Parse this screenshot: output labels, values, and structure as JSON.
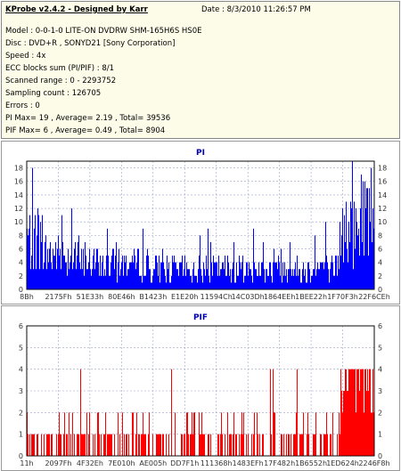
{
  "header": {
    "title": "KProbe v2.4.2 - Designed by Karr",
    "date": "Date : 8/3/2010 11:26:57 PM"
  },
  "info_lines": [
    "Model : 0-0-1-0 LITE-ON DVDRW SHM-165H6S HS0E",
    "Disc : DVD+R , SONYD21 [Sony Corporation]",
    "Speed : 4x",
    "ECC blocks sum (PI/PIF) : 8/1",
    "Scanned range : 0 - 2293752",
    "Sampling count : 126705",
    "Errors : 0",
    "PI Max= 19 , Average= 2.19 , Total= 39536",
    "PIF Max= 6 , Average= 0.49 , Total= 8904"
  ],
  "colors": {
    "pi": "#0000ff",
    "pif": "#ff0000",
    "title": "#0000b0",
    "panel": "#fdfce9"
  },
  "chart_data": [
    {
      "type": "bar",
      "title": "PI",
      "ylim": [
        0,
        19
      ],
      "yticks": [
        0,
        2,
        4,
        6,
        8,
        10,
        12,
        14,
        16,
        18
      ],
      "xticks": [
        "8Bh",
        "2175Fh",
        "51E33h",
        "80E46h",
        "B1423h",
        "E1E20h",
        "11594Ch",
        "14C03Dh",
        "1864EEh",
        "1BEE22h",
        "1F70F3h",
        "22F6CEh"
      ],
      "grid": true,
      "profile": {
        "segments": [
          {
            "from": 0,
            "to": 0.04,
            "level": 9
          },
          {
            "from": 0.04,
            "to": 0.15,
            "level": 6
          },
          {
            "from": 0.15,
            "to": 0.35,
            "level": 4.5
          },
          {
            "from": 0.35,
            "to": 0.82,
            "level": 3.5
          },
          {
            "from": 0.82,
            "to": 0.9,
            "level": 4
          },
          {
            "from": 0.9,
            "to": 0.96,
            "level": 10
          },
          {
            "from": 0.96,
            "to": 1.0,
            "level": 14
          }
        ],
        "max": 19
      }
    },
    {
      "type": "bar",
      "title": "PIF",
      "ylim": [
        0,
        6
      ],
      "yticks": [
        0,
        1,
        2,
        3,
        4,
        5,
        6
      ],
      "xticks": [
        "11h",
        "2097Fh",
        "4F32Eh",
        "7E010h",
        "AE005h",
        "DD7F1h",
        "111368h",
        "1483EFh",
        "17F482h",
        "1B6552h",
        "1ED624h",
        "2246F8h"
      ],
      "grid": true,
      "profile": {
        "segments": [
          {
            "from": 0,
            "to": 0.9,
            "level": 1.5
          },
          {
            "from": 0.9,
            "to": 0.95,
            "level": 3
          },
          {
            "from": 0.95,
            "to": 1.0,
            "level": 3.5
          }
        ],
        "max": 6
      }
    }
  ]
}
